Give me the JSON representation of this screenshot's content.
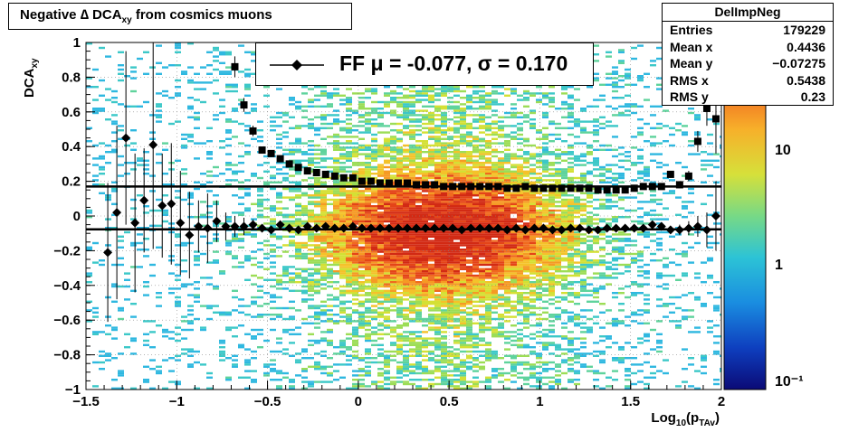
{
  "title": {
    "main": "Negative ∆ DCA",
    "sub": "xy",
    "suffix": " from cosmics muons"
  },
  "stats_box": {
    "name": "DelImpNeg",
    "rows": [
      {
        "label": "Entries",
        "value": "179229"
      },
      {
        "label": "Mean x",
        "value": "0.4436"
      },
      {
        "label": "Mean y",
        "value": "−0.07275"
      },
      {
        "label": "RMS x",
        "value": "0.5438"
      },
      {
        "label": "RMS y",
        "value": "0.23"
      }
    ]
  },
  "legend": {
    "label": "FF μ = -0.077, σ =   0.170"
  },
  "axes": {
    "xlabel_main": "Log",
    "xlabel_sub1": "10",
    "xlabel_mid": "(p",
    "xlabel_sub2": "TAv",
    "xlabel_end": ")",
    "ylabel_main": "DCA",
    "ylabel_sub": "xy",
    "xlim": [
      -1.5,
      2
    ],
    "ylim": [
      -1,
      1
    ],
    "xticks": [
      "−1.5",
      "−1",
      "−0.5",
      "0",
      "0.5",
      "1",
      "1.5",
      "2"
    ],
    "yticks": [
      "−1",
      "−0.8",
      "−0.6",
      "−0.4",
      "−0.2",
      "0",
      "0.2",
      "0.4",
      "0.6",
      "0.8",
      "1"
    ],
    "colorbar_ticks": [
      "10⁻¹",
      "1",
      "10"
    ]
  },
  "chart_data": {
    "type": "heatmap",
    "x": [
      -1.38,
      -1.33,
      -1.28,
      -1.23,
      -1.18,
      -1.13,
      -1.08,
      -1.03,
      -0.98,
      -0.93,
      -0.88,
      -0.83,
      -0.78,
      -0.73,
      -0.68,
      -0.63,
      -0.58,
      -0.53,
      -0.48,
      -0.43,
      -0.38,
      -0.33,
      -0.28,
      -0.23,
      -0.18,
      -0.13,
      -0.08,
      -0.03,
      0.02,
      0.07,
      0.12,
      0.17,
      0.22,
      0.27,
      0.32,
      0.37,
      0.42,
      0.47,
      0.52,
      0.57,
      0.62,
      0.67,
      0.72,
      0.77,
      0.82,
      0.87,
      0.92,
      0.97,
      1.02,
      1.07,
      1.12,
      1.17,
      1.22,
      1.27,
      1.32,
      1.37,
      1.42,
      1.47,
      1.52,
      1.57,
      1.62,
      1.67,
      1.72,
      1.77,
      1.82,
      1.87,
      1.92,
      1.97
    ],
    "series": [
      {
        "name": "mean",
        "values": [
          -0.21,
          0.02,
          0.45,
          -0.04,
          0.09,
          0.41,
          0.06,
          0.07,
          -0.04,
          -0.11,
          -0.06,
          -0.07,
          -0.03,
          -0.06,
          -0.06,
          -0.06,
          -0.05,
          -0.07,
          -0.08,
          -0.05,
          -0.07,
          -0.08,
          -0.06,
          -0.07,
          -0.06,
          -0.07,
          -0.07,
          -0.06,
          -0.07,
          -0.07,
          -0.07,
          -0.07,
          -0.07,
          -0.07,
          -0.07,
          -0.07,
          -0.07,
          -0.07,
          -0.07,
          -0.08,
          -0.07,
          -0.07,
          -0.07,
          -0.07,
          -0.08,
          -0.07,
          -0.08,
          -0.07,
          -0.07,
          -0.08,
          -0.08,
          -0.07,
          -0.07,
          -0.08,
          -0.08,
          -0.07,
          -0.07,
          -0.07,
          -0.07,
          -0.07,
          -0.05,
          -0.06,
          -0.08,
          -0.08,
          -0.07,
          -0.06,
          -0.08,
          0.0
        ],
        "errors": [
          0.4,
          0.5,
          0.5,
          0.4,
          0.3,
          0.6,
          0.3,
          0.35,
          0.3,
          0.25,
          0.15,
          0.2,
          0.12,
          0.08,
          0.06,
          0.05,
          0.03,
          0.02,
          0.02,
          0.02,
          0.01,
          0.01,
          0.01,
          0.01,
          0.01,
          0.01,
          0.01,
          0.01,
          0.01,
          0.01,
          0.01,
          0.01,
          0.01,
          0.01,
          0.01,
          0.01,
          0.01,
          0.01,
          0.01,
          0.01,
          0.01,
          0.01,
          0.01,
          0.01,
          0.01,
          0.01,
          0.01,
          0.01,
          0.01,
          0.01,
          0.01,
          0.01,
          0.01,
          0.01,
          0.01,
          0.01,
          0.01,
          0.01,
          0.01,
          0.02,
          0.02,
          0.02,
          0.02,
          0.03,
          0.04,
          0.06,
          0.1,
          0.2
        ]
      },
      {
        "name": "sigma",
        "x": [
          -0.68,
          -0.63,
          -0.58,
          -0.53,
          -0.48,
          -0.43,
          -0.38,
          -0.33,
          -0.28,
          -0.23,
          -0.18,
          -0.13,
          -0.08,
          -0.03,
          0.02,
          0.07,
          0.12,
          0.17,
          0.22,
          0.27,
          0.32,
          0.37,
          0.42,
          0.47,
          0.52,
          0.57,
          0.62,
          0.67,
          0.72,
          0.77,
          0.82,
          0.87,
          0.92,
          0.97,
          1.02,
          1.07,
          1.12,
          1.17,
          1.22,
          1.27,
          1.32,
          1.37,
          1.42,
          1.47,
          1.52,
          1.57,
          1.62,
          1.67,
          1.72,
          1.77,
          1.82,
          1.87,
          1.92,
          1.97
        ],
        "values": [
          0.86,
          0.64,
          0.49,
          0.38,
          0.36,
          0.33,
          0.3,
          0.28,
          0.26,
          0.25,
          0.24,
          0.23,
          0.22,
          0.22,
          0.2,
          0.2,
          0.19,
          0.19,
          0.19,
          0.19,
          0.18,
          0.18,
          0.18,
          0.17,
          0.17,
          0.17,
          0.17,
          0.17,
          0.17,
          0.17,
          0.16,
          0.16,
          0.17,
          0.16,
          0.16,
          0.16,
          0.16,
          0.16,
          0.16,
          0.16,
          0.15,
          0.15,
          0.15,
          0.15,
          0.16,
          0.17,
          0.17,
          0.17,
          0.24,
          0.18,
          0.23,
          0.43,
          0.62,
          0.56
        ],
        "errors": [
          0.06,
          0.04,
          0.03,
          0.02,
          0.02,
          0.01,
          0.01,
          0.01,
          0.01,
          0.01,
          0.01,
          0.01,
          0.01,
          0.01,
          0.01,
          0.01,
          0.01,
          0.01,
          0.01,
          0.01,
          0.01,
          0.01,
          0.01,
          0.01,
          0.01,
          0.01,
          0.01,
          0.01,
          0.01,
          0.01,
          0.01,
          0.01,
          0.01,
          0.01,
          0.01,
          0.01,
          0.01,
          0.01,
          0.01,
          0.01,
          0.01,
          0.01,
          0.01,
          0.01,
          0.01,
          0.01,
          0.01,
          0.01,
          0.02,
          0.02,
          0.03,
          0.06,
          0.1,
          0.2
        ]
      }
    ],
    "fit_lines": [
      {
        "y": -0.077
      },
      {
        "y": 0.17
      }
    ],
    "colors": {
      "marker": "#000000",
      "grid": "#888888"
    }
  }
}
